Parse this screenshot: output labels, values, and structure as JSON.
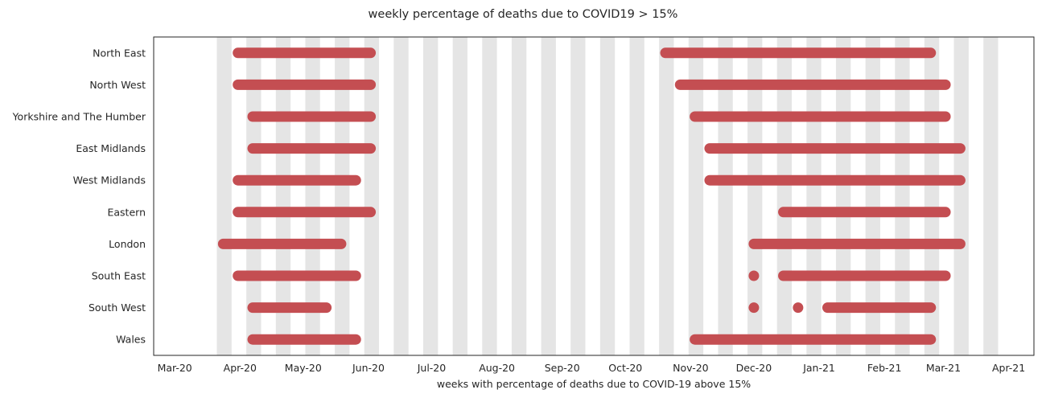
{
  "chart_data": {
    "type": "timeline",
    "title": "weekly percentage of deaths due to COVID19 > 15%",
    "xlabel": "weeks with percentage of deaths due to COVID-19 above 15%",
    "x_ticks": [
      {
        "date": "2020-03-01",
        "label": "Mar-20"
      },
      {
        "date": "2020-04-01",
        "label": "Apr-20"
      },
      {
        "date": "2020-05-01",
        "label": "May-20"
      },
      {
        "date": "2020-06-01",
        "label": "Jun-20"
      },
      {
        "date": "2020-07-01",
        "label": "Jul-20"
      },
      {
        "date": "2020-08-01",
        "label": "Aug-20"
      },
      {
        "date": "2020-09-01",
        "label": "Sep-20"
      },
      {
        "date": "2020-10-01",
        "label": "Oct-20"
      },
      {
        "date": "2020-11-01",
        "label": "Nov-20"
      },
      {
        "date": "2020-12-01",
        "label": "Dec-20"
      },
      {
        "date": "2021-01-01",
        "label": "Jan-21"
      },
      {
        "date": "2021-02-01",
        "label": "Feb-21"
      },
      {
        "date": "2021-03-01",
        "label": "Mar-21"
      },
      {
        "date": "2021-04-01",
        "label": "Apr-21"
      }
    ],
    "xlim": [
      "2020-02-20",
      "2021-04-13"
    ],
    "grid": false,
    "shaded_weeks": [
      "2020-03-21",
      "2020-04-04",
      "2020-04-18",
      "2020-05-02",
      "2020-05-16",
      "2020-05-30",
      "2020-06-13",
      "2020-06-27",
      "2020-07-11",
      "2020-07-25",
      "2020-08-08",
      "2020-08-22",
      "2020-09-05",
      "2020-09-19",
      "2020-10-03",
      "2020-10-17",
      "2020-10-31",
      "2020-11-14",
      "2020-11-28",
      "2020-12-12",
      "2020-12-26",
      "2021-01-09",
      "2021-01-23",
      "2021-02-06",
      "2021-02-20",
      "2021-03-06",
      "2021-03-20"
    ],
    "shade_color": "#e5e5e5",
    "bar_color": "#c44e52",
    "categories": [
      "North East",
      "North West",
      "Yorkshire and The Humber",
      "East Midlands",
      "West Midlands",
      "Eastern",
      "London",
      "South East",
      "South West",
      "Wales"
    ],
    "series": [
      {
        "category": "North East",
        "segments": [
          [
            "2020-03-31",
            "2020-06-02"
          ],
          [
            "2020-10-20",
            "2021-02-23"
          ]
        ]
      },
      {
        "category": "North West",
        "segments": [
          [
            "2020-03-31",
            "2020-06-02"
          ],
          [
            "2020-10-27",
            "2021-03-02"
          ]
        ]
      },
      {
        "category": "Yorkshire and The Humber",
        "segments": [
          [
            "2020-04-07",
            "2020-06-02"
          ],
          [
            "2020-11-03",
            "2021-03-02"
          ]
        ]
      },
      {
        "category": "East Midlands",
        "segments": [
          [
            "2020-04-07",
            "2020-06-02"
          ],
          [
            "2020-11-10",
            "2021-03-09"
          ]
        ]
      },
      {
        "category": "West Midlands",
        "segments": [
          [
            "2020-03-31",
            "2020-05-26"
          ],
          [
            "2020-11-10",
            "2021-03-09"
          ]
        ]
      },
      {
        "category": "Eastern",
        "segments": [
          [
            "2020-03-31",
            "2020-06-02"
          ],
          [
            "2020-12-15",
            "2021-03-02"
          ]
        ]
      },
      {
        "category": "London",
        "segments": [
          [
            "2020-03-24",
            "2020-05-19"
          ],
          [
            "2020-12-01",
            "2021-03-09"
          ]
        ]
      },
      {
        "category": "South East",
        "segments": [
          [
            "2020-03-31",
            "2020-05-26"
          ],
          [
            "2020-12-01",
            "2020-12-01"
          ],
          [
            "2020-12-15",
            "2021-03-02"
          ]
        ]
      },
      {
        "category": "South West",
        "segments": [
          [
            "2020-04-07",
            "2020-05-12"
          ],
          [
            "2020-12-01",
            "2020-12-01"
          ],
          [
            "2020-12-22",
            "2020-12-22"
          ],
          [
            "2021-01-05",
            "2021-02-23"
          ]
        ]
      },
      {
        "category": "Wales",
        "segments": [
          [
            "2020-04-07",
            "2020-05-26"
          ],
          [
            "2020-11-03",
            "2021-02-23"
          ]
        ]
      }
    ]
  }
}
